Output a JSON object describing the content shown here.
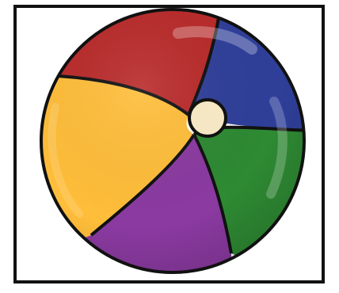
{
  "image": {
    "subject": "beach-ball",
    "colors": {
      "red": "#b92a2a",
      "blue": "#2f3f99",
      "green": "#2e8a33",
      "purple": "#8b3aa1",
      "yellow": "#ffbe3a",
      "center": "#f6e7c4",
      "outline": "#111111",
      "frame": "#111111",
      "background": "#ffffff"
    }
  }
}
